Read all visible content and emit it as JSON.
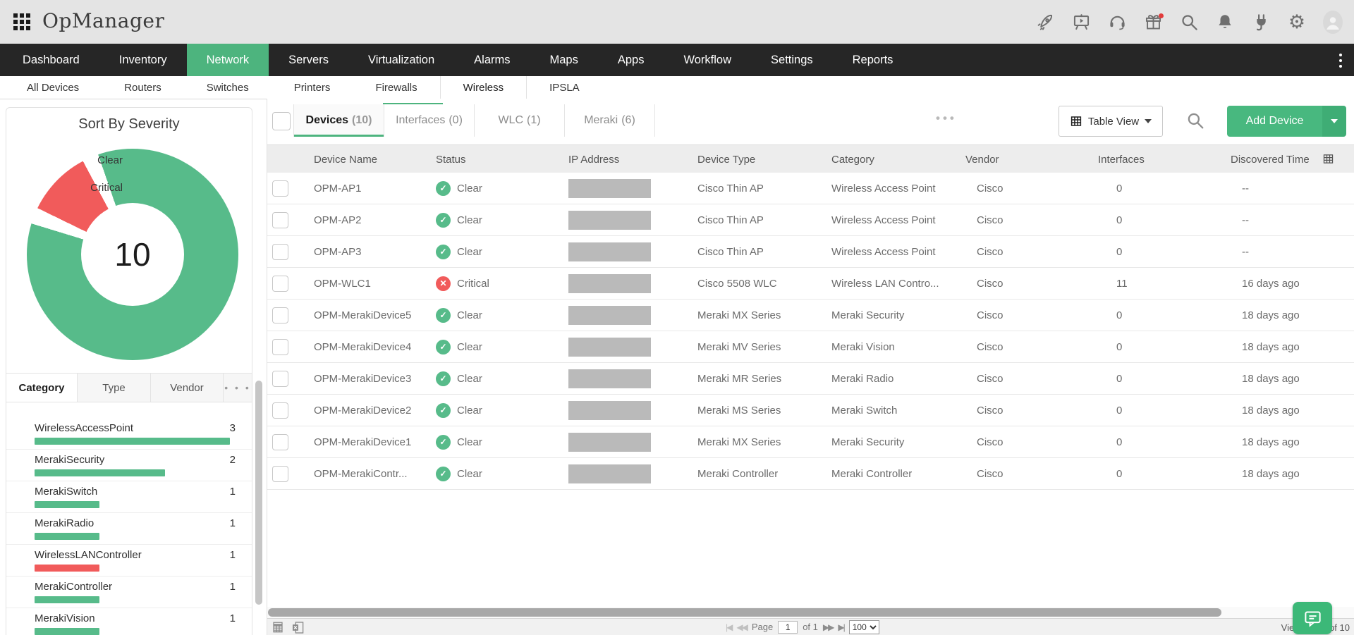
{
  "brand": {
    "title": "OpManager"
  },
  "header": {
    "icon_names": [
      "app-launcher",
      "rocket",
      "demo-presentation",
      "support-headset",
      "whats-new-gift",
      "global-search",
      "notifications-bell",
      "integrations-plug",
      "settings-gear",
      "user-avatar"
    ],
    "gift_badge_color": "#e23b3b"
  },
  "nav": {
    "items": [
      {
        "label": "Dashboard",
        "active": false
      },
      {
        "label": "Inventory",
        "active": false
      },
      {
        "label": "Network",
        "active": true
      },
      {
        "label": "Servers",
        "active": false
      },
      {
        "label": "Virtualization",
        "active": false
      },
      {
        "label": "Alarms",
        "active": false
      },
      {
        "label": "Maps",
        "active": false
      },
      {
        "label": "Apps",
        "active": false
      },
      {
        "label": "Workflow",
        "active": false
      },
      {
        "label": "Settings",
        "active": false
      },
      {
        "label": "Reports",
        "active": false
      }
    ]
  },
  "subnav": {
    "items": [
      {
        "label": "All Devices",
        "active": false
      },
      {
        "label": "Routers",
        "active": false
      },
      {
        "label": "Switches",
        "active": false
      },
      {
        "label": "Printers",
        "active": false
      },
      {
        "label": "Firewalls",
        "active": false
      },
      {
        "label": "Wireless",
        "active": true
      },
      {
        "label": "IPSLA",
        "active": false
      }
    ]
  },
  "sidebar": {
    "tabs": [
      {
        "label": "Category",
        "active": true
      },
      {
        "label": "Type",
        "active": false
      },
      {
        "label": "Vendor",
        "active": false
      }
    ],
    "more_label": "• • •",
    "categories": [
      {
        "name": "WirelessAccessPoint",
        "count": 3,
        "color": "#57bb8a"
      },
      {
        "name": "MerakiSecurity",
        "count": 2,
        "color": "#57bb8a"
      },
      {
        "name": "MerakiSwitch",
        "count": 1,
        "color": "#57bb8a"
      },
      {
        "name": "MerakiRadio",
        "count": 1,
        "color": "#57bb8a"
      },
      {
        "name": "WirelessLANController",
        "count": 1,
        "color": "#f15b5b"
      },
      {
        "name": "MerakiController",
        "count": 1,
        "color": "#57bb8a"
      },
      {
        "name": "MerakiVision",
        "count": 1,
        "color": "#57bb8a"
      }
    ]
  },
  "chart_data": [
    {
      "type": "pie",
      "title": "Sort By Severity",
      "labels": [
        "Clear",
        "Critical"
      ],
      "values": [
        9,
        1
      ],
      "colors": [
        "#57bb8a",
        "#f15b5b"
      ],
      "center_label": "10",
      "hole": true,
      "legend_position": "left"
    },
    {
      "type": "bar",
      "orientation": "horizontal",
      "title": "Category",
      "categories": [
        "WirelessAccessPoint",
        "MerakiSecurity",
        "MerakiSwitch",
        "MerakiRadio",
        "WirelessLANController",
        "MerakiController",
        "MerakiVision"
      ],
      "values": [
        3,
        2,
        1,
        1,
        1,
        1,
        1
      ],
      "colors": [
        "#57bb8a",
        "#57bb8a",
        "#57bb8a",
        "#57bb8a",
        "#f15b5b",
        "#57bb8a",
        "#57bb8a"
      ],
      "xlim": [
        0,
        3
      ]
    }
  ],
  "main": {
    "tabs": [
      {
        "label": "Devices",
        "count": "(10)",
        "active": true
      },
      {
        "label": "Interfaces",
        "count": "(0)",
        "active": false
      },
      {
        "label": "WLC",
        "count": "(1)",
        "active": false
      },
      {
        "label": "Meraki",
        "count": "(6)",
        "active": false
      }
    ],
    "more_label": "•••",
    "toolbar": {
      "view_button": "Table View",
      "add_button": "Add Device"
    },
    "table": {
      "columns": [
        "Device Name",
        "Status",
        "IP Address",
        "Device Type",
        "Category",
        "Vendor",
        "Interfaces",
        "Discovered Time"
      ],
      "rows": [
        {
          "name": "OPM-AP1",
          "status": "Clear",
          "status_type": "clear",
          "type": "Cisco Thin AP",
          "category": "Wireless Access Point",
          "vendor": "Cisco",
          "interfaces": "0",
          "discovered": "--"
        },
        {
          "name": "OPM-AP2",
          "status": "Clear",
          "status_type": "clear",
          "type": "Cisco Thin AP",
          "category": "Wireless Access Point",
          "vendor": "Cisco",
          "interfaces": "0",
          "discovered": "--"
        },
        {
          "name": "OPM-AP3",
          "status": "Clear",
          "status_type": "clear",
          "type": "Cisco Thin AP",
          "category": "Wireless Access Point",
          "vendor": "Cisco",
          "interfaces": "0",
          "discovered": "--"
        },
        {
          "name": "OPM-WLC1",
          "status": "Critical",
          "status_type": "critical",
          "type": "Cisco 5508 WLC",
          "category": "Wireless LAN Contro...",
          "vendor": "Cisco",
          "interfaces": "11",
          "discovered": "16 days ago"
        },
        {
          "name": "OPM-MerakiDevice5",
          "status": "Clear",
          "status_type": "clear",
          "type": "Meraki MX Series",
          "category": "Meraki Security",
          "vendor": "Cisco",
          "interfaces": "0",
          "discovered": "18 days ago"
        },
        {
          "name": "OPM-MerakiDevice4",
          "status": "Clear",
          "status_type": "clear",
          "type": "Meraki MV Series",
          "category": "Meraki Vision",
          "vendor": "Cisco",
          "interfaces": "0",
          "discovered": "18 days ago"
        },
        {
          "name": "OPM-MerakiDevice3",
          "status": "Clear",
          "status_type": "clear",
          "type": "Meraki MR Series",
          "category": "Meraki Radio",
          "vendor": "Cisco",
          "interfaces": "0",
          "discovered": "18 days ago"
        },
        {
          "name": "OPM-MerakiDevice2",
          "status": "Clear",
          "status_type": "clear",
          "type": "Meraki MS Series",
          "category": "Meraki Switch",
          "vendor": "Cisco",
          "interfaces": "0",
          "discovered": "18 days ago"
        },
        {
          "name": "OPM-MerakiDevice1",
          "status": "Clear",
          "status_type": "clear",
          "type": "Meraki MX Series",
          "category": "Meraki Security",
          "vendor": "Cisco",
          "interfaces": "0",
          "discovered": "18 days ago"
        },
        {
          "name": "OPM-MerakiContr...",
          "status": "Clear",
          "status_type": "clear",
          "type": "Meraki Controller",
          "category": "Meraki Controller",
          "vendor": "Cisco",
          "interfaces": "0",
          "discovered": "18 days ago"
        }
      ]
    },
    "footer": {
      "page_label": "Page",
      "page_value": "1",
      "of_label": "of 1",
      "page_size": "100",
      "view_info": "View 1 - 10 of 10"
    }
  },
  "colors": {
    "accent_green": "#4db47e",
    "button_green": "#48b87f",
    "button_green_dark": "#3fad75",
    "clear_green": "#57bb8a",
    "critical_red": "#f15b5b",
    "nav_dark": "#262626",
    "header_gray": "#e4e4e4"
  }
}
